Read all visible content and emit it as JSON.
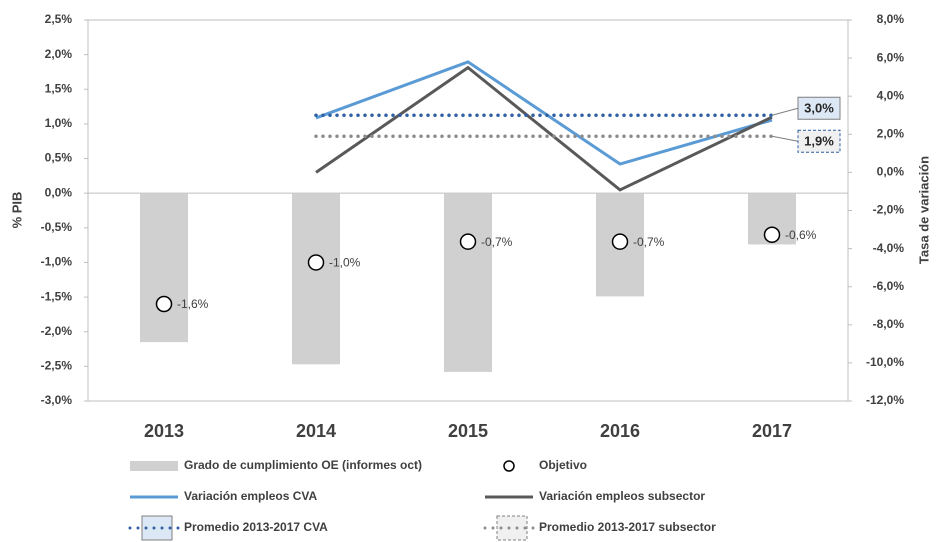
{
  "chart_data": {
    "type": "combo",
    "categories": [
      "2013",
      "2014",
      "2015",
      "2016",
      "2017"
    ],
    "ylabel": "% PIB",
    "y2label": "Tasa de variación",
    "ylim": [
      -3,
      2.5
    ],
    "yticks": [
      {
        "value": -3,
        "label": "-3,0%"
      },
      {
        "value": -2.5,
        "label": "-2,5%"
      },
      {
        "value": -2,
        "label": "-2,0%"
      },
      {
        "value": -1.5,
        "label": "-1,5%"
      },
      {
        "value": -1,
        "label": "-1,0%"
      },
      {
        "value": -0.5,
        "label": "-0,5%"
      },
      {
        "value": 0,
        "label": "0,0%"
      },
      {
        "value": 0.5,
        "label": "0,5%"
      },
      {
        "value": 1,
        "label": "1,0%"
      },
      {
        "value": 1.5,
        "label": "1,5%"
      },
      {
        "value": 2,
        "label": "2,0%"
      },
      {
        "value": 2.5,
        "label": "2,5%"
      }
    ],
    "y2lim": [
      -12,
      8
    ],
    "y2ticks": [
      {
        "value": -12,
        "label": "-12,0%"
      },
      {
        "value": -10,
        "label": "-10,0%"
      },
      {
        "value": -8,
        "label": "-8,0%"
      },
      {
        "value": -6,
        "label": "-6,0%"
      },
      {
        "value": -4,
        "label": "-4,0%"
      },
      {
        "value": -2,
        "label": "-2,0%"
      },
      {
        "value": 0,
        "label": "0,0%"
      },
      {
        "value": 2,
        "label": "2,0%"
      },
      {
        "value": 4,
        "label": "4,0%"
      },
      {
        "value": 6,
        "label": "6,0%"
      },
      {
        "value": 8,
        "label": "8,0%"
      }
    ],
    "series": [
      {
        "name": "Grado de cumplimiento OE (informes oct)",
        "kind": "bar",
        "color": "#d0d0d0",
        "values": [
          -2.15,
          -2.47,
          -2.58,
          -1.49,
          -0.74
        ]
      },
      {
        "name": "Objetivo",
        "kind": "scatter",
        "color": "#000000",
        "values": [
          -1.6,
          -1.0,
          -0.7,
          -0.7,
          -0.6
        ],
        "value_labels": [
          "-1,6%",
          "-1,0%",
          "-0,7%",
          "-0,7%",
          "-0,6%"
        ]
      },
      {
        "name": "Variación empleos CVA",
        "kind": "line",
        "axis": "y2",
        "color": "#5b9bd5",
        "values": [
          null,
          2.86,
          5.8,
          0.44,
          2.75
        ]
      },
      {
        "name": "Variación empleos subsector",
        "kind": "line",
        "axis": "y2",
        "color": "#595959",
        "values": [
          null,
          0.0,
          5.5,
          -0.92,
          2.9
        ]
      },
      {
        "name": "Promedio 2013-2017 CVA",
        "kind": "dotted",
        "axis": "y2",
        "color": "#2e5fa3",
        "box": "#dce8f5",
        "values": [
          null,
          3.0,
          3.0,
          3.0,
          3.0
        ],
        "value_labels": [
          null,
          null,
          null,
          null,
          "3,0%"
        ]
      },
      {
        "name": "Promedio 2013-2017 subsector",
        "kind": "dotted",
        "axis": "y2",
        "color": "#8c8c8c",
        "box": "#f0f0f0",
        "values": [
          null,
          1.9,
          1.9,
          1.9,
          1.9
        ],
        "value_labels": [
          null,
          null,
          null,
          null,
          "1,9%"
        ]
      }
    ]
  }
}
